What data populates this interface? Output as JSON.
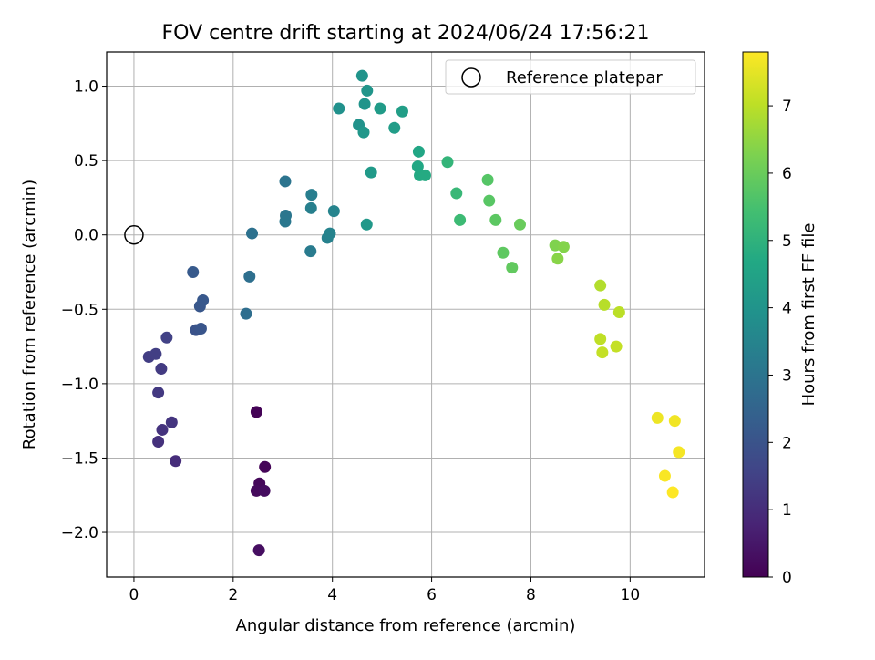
{
  "chart_data": {
    "type": "scatter",
    "title": "FOV centre drift starting at 2024/06/24 17:56:21",
    "xlabel": "Angular distance from reference (arcmin)",
    "ylabel": "Rotation from reference (arcmin)",
    "xlim": [
      -0.55,
      11.5
    ],
    "ylim": [
      -2.3,
      1.23
    ],
    "xticks": [
      0,
      2,
      4,
      6,
      8,
      10
    ],
    "xtick_labels": [
      "0",
      "2",
      "4",
      "6",
      "8",
      "10"
    ],
    "yticks": [
      -2.0,
      -1.5,
      -1.0,
      -0.5,
      0.0,
      0.5,
      1.0
    ],
    "ytick_labels": [
      "−2.0",
      "−1.5",
      "−1.0",
      "−0.5",
      "0.0",
      "0.5",
      "1.0"
    ],
    "grid": true,
    "legend": {
      "location": "upper right",
      "entries": [
        "Reference platepar"
      ]
    },
    "reference_point": {
      "x": 0,
      "y": 0,
      "label": "Reference platepar"
    },
    "colorbar": {
      "label": "Hours from first FF file",
      "colormap": "viridis",
      "range": [
        0,
        7.8
      ],
      "ticks": [
        0,
        1,
        2,
        3,
        4,
        5,
        6,
        7
      ],
      "tick_labels": [
        "0",
        "1",
        "2",
        "3",
        "4",
        "5",
        "6",
        "7"
      ]
    },
    "points": [
      {
        "x": 2.47,
        "y": -1.19,
        "c": 0.05
      },
      {
        "x": 2.64,
        "y": -1.56,
        "c": 0.1
      },
      {
        "x": 2.53,
        "y": -1.67,
        "c": 0.15
      },
      {
        "x": 2.47,
        "y": -1.72,
        "c": 0.2
      },
      {
        "x": 2.63,
        "y": -1.72,
        "c": 0.25
      },
      {
        "x": 2.52,
        "y": -2.12,
        "c": 0.3
      },
      {
        "x": 0.84,
        "y": -1.52,
        "c": 1.0
      },
      {
        "x": 0.49,
        "y": -1.39,
        "c": 1.1
      },
      {
        "x": 0.57,
        "y": -1.31,
        "c": 1.15
      },
      {
        "x": 0.76,
        "y": -1.26,
        "c": 1.2
      },
      {
        "x": 0.49,
        "y": -1.06,
        "c": 1.3
      },
      {
        "x": 0.55,
        "y": -0.9,
        "c": 1.35
      },
      {
        "x": 0.3,
        "y": -0.82,
        "c": 1.4
      },
      {
        "x": 0.44,
        "y": -0.8,
        "c": 1.45
      },
      {
        "x": 0.66,
        "y": -0.69,
        "c": 1.5
      },
      {
        "x": 1.25,
        "y": -0.64,
        "c": 2.0
      },
      {
        "x": 1.35,
        "y": -0.63,
        "c": 2.05
      },
      {
        "x": 1.33,
        "y": -0.48,
        "c": 2.1
      },
      {
        "x": 1.39,
        "y": -0.44,
        "c": 2.15
      },
      {
        "x": 1.19,
        "y": -0.25,
        "c": 2.2
      },
      {
        "x": 2.26,
        "y": -0.53,
        "c": 2.8
      },
      {
        "x": 2.33,
        "y": -0.28,
        "c": 2.85
      },
      {
        "x": 2.38,
        "y": 0.01,
        "c": 2.9
      },
      {
        "x": 3.05,
        "y": 0.36,
        "c": 3.0
      },
      {
        "x": 3.06,
        "y": 0.13,
        "c": 3.05
      },
      {
        "x": 3.05,
        "y": 0.09,
        "c": 3.1
      },
      {
        "x": 3.58,
        "y": 0.27,
        "c": 3.3
      },
      {
        "x": 3.57,
        "y": 0.18,
        "c": 3.35
      },
      {
        "x": 3.56,
        "y": -0.11,
        "c": 3.2
      },
      {
        "x": 3.9,
        "y": -0.02,
        "c": 3.4
      },
      {
        "x": 3.95,
        "y": 0.01,
        "c": 3.45
      },
      {
        "x": 4.03,
        "y": 0.16,
        "c": 3.5
      },
      {
        "x": 4.13,
        "y": 0.85,
        "c": 3.9
      },
      {
        "x": 4.53,
        "y": 0.74,
        "c": 3.95
      },
      {
        "x": 4.6,
        "y": 1.07,
        "c": 4.0
      },
      {
        "x": 4.65,
        "y": 0.88,
        "c": 4.0
      },
      {
        "x": 4.7,
        "y": 0.97,
        "c": 4.05
      },
      {
        "x": 4.63,
        "y": 0.69,
        "c": 4.1
      },
      {
        "x": 4.69,
        "y": 0.07,
        "c": 4.15
      },
      {
        "x": 4.78,
        "y": 0.42,
        "c": 4.2
      },
      {
        "x": 4.96,
        "y": 0.85,
        "c": 4.25
      },
      {
        "x": 5.25,
        "y": 0.72,
        "c": 4.3
      },
      {
        "x": 5.41,
        "y": 0.83,
        "c": 4.35
      },
      {
        "x": 5.74,
        "y": 0.56,
        "c": 4.6
      },
      {
        "x": 5.72,
        "y": 0.46,
        "c": 4.65
      },
      {
        "x": 5.76,
        "y": 0.4,
        "c": 4.7
      },
      {
        "x": 5.87,
        "y": 0.4,
        "c": 4.75
      },
      {
        "x": 6.32,
        "y": 0.49,
        "c": 5.1
      },
      {
        "x": 6.5,
        "y": 0.28,
        "c": 5.2
      },
      {
        "x": 6.57,
        "y": 0.1,
        "c": 5.3
      },
      {
        "x": 7.13,
        "y": 0.37,
        "c": 5.7
      },
      {
        "x": 7.16,
        "y": 0.23,
        "c": 5.75
      },
      {
        "x": 7.29,
        "y": 0.1,
        "c": 5.8
      },
      {
        "x": 7.44,
        "y": -0.12,
        "c": 5.85
      },
      {
        "x": 7.62,
        "y": -0.22,
        "c": 5.9
      },
      {
        "x": 7.78,
        "y": 0.07,
        "c": 6.0
      },
      {
        "x": 8.49,
        "y": -0.07,
        "c": 6.3
      },
      {
        "x": 8.66,
        "y": -0.08,
        "c": 6.35
      },
      {
        "x": 8.54,
        "y": -0.16,
        "c": 6.4
      },
      {
        "x": 9.4,
        "y": -0.34,
        "c": 6.9
      },
      {
        "x": 9.48,
        "y": -0.47,
        "c": 6.95
      },
      {
        "x": 9.78,
        "y": -0.52,
        "c": 7.0
      },
      {
        "x": 9.4,
        "y": -0.7,
        "c": 7.05
      },
      {
        "x": 9.72,
        "y": -0.75,
        "c": 7.1
      },
      {
        "x": 9.44,
        "y": -0.79,
        "c": 7.1
      },
      {
        "x": 10.55,
        "y": -1.23,
        "c": 7.6
      },
      {
        "x": 10.9,
        "y": -1.25,
        "c": 7.65
      },
      {
        "x": 10.98,
        "y": -1.46,
        "c": 7.7
      },
      {
        "x": 10.7,
        "y": -1.62,
        "c": 7.75
      },
      {
        "x": 10.86,
        "y": -1.73,
        "c": 7.8
      }
    ]
  }
}
